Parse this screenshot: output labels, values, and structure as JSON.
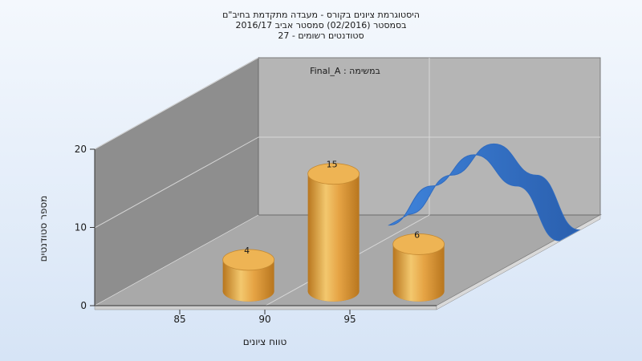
{
  "chart_data": {
    "type": "bar",
    "title_lines": [
      "היסטוגרמת ציונים בקורס - מעבדה מתקדמת בחיב\"ם",
      "בסמסטר  (02/2016)  סמסטר אביב 2016/17",
      "סטודנטים רשומים - 27"
    ],
    "annotation": "במשימה : Final_A",
    "xlabel": "טווח ציונים",
    "ylabel": "מספר סטודנטים",
    "x_ticks": [
      85,
      90,
      95
    ],
    "y_ticks": [
      0,
      10,
      20
    ],
    "ylim": [
      0,
      20
    ],
    "categories": [
      "87.5",
      "92.5",
      "97.5"
    ],
    "values": [
      4,
      15,
      6
    ],
    "curve": {
      "color": "#2f6bc0",
      "points": [
        [
          92.5,
          4.5
        ],
        [
          95,
          9.5
        ],
        [
          97.5,
          13.5
        ],
        [
          100,
          9.5
        ],
        [
          102.5,
          2.5
        ]
      ]
    },
    "colors": {
      "bar": "#e0a040",
      "bar_top": "#eeb454",
      "floor": "#a8a8a8",
      "back_wall": "#b4b4b4",
      "side_wall": "#8c8c8c"
    },
    "grid": true,
    "three_d": true
  }
}
